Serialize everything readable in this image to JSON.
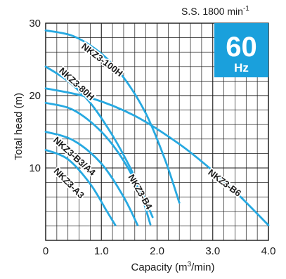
{
  "chart_data": {
    "type": "line",
    "title": "",
    "xlabel": "Capacity (m",
    "xlabel_sup": "3",
    "xlabel_tail": "/min)",
    "ylabel": "Total head (m)",
    "xlim": [
      0,
      4.0
    ],
    "ylim": [
      0,
      30
    ],
    "x_ticks": [
      0,
      1.0,
      2.0,
      3.0,
      4.0
    ],
    "x_tick_labels": [
      "0",
      "1.0",
      "2.0",
      "3.0",
      "4.0"
    ],
    "y_ticks": [
      10,
      20,
      30
    ],
    "y_tick_labels": [
      "10",
      "20",
      "30"
    ],
    "grid": true,
    "speed_label": "S.S. 1800 min",
    "speed_sup": "-1",
    "badge": {
      "value": "60",
      "unit": "Hz",
      "color": "#1aa0dc"
    },
    "curve_color": "#27a9e1",
    "series": [
      {
        "name": "NKZ3-100H",
        "x": [
          0,
          0.5,
          1.0,
          1.4,
          1.8,
          2.15,
          2.4
        ],
        "y": [
          29,
          28.2,
          25.8,
          22.5,
          17.5,
          11,
          5.2
        ]
      },
      {
        "name": "NKZ3-80H",
        "x": [
          0,
          0.4,
          0.8,
          1.2,
          1.5,
          1.75,
          1.92
        ],
        "y": [
          24,
          22,
          19,
          14.5,
          10.3,
          6.2,
          3.2
        ]
      },
      {
        "name": "NKZ3-B3/A4",
        "x": [
          0,
          0.5,
          1.0,
          1.4,
          1.65
        ],
        "y": [
          15,
          13.8,
          10.6,
          6,
          2.1
        ]
      },
      {
        "name": "NKZ3-A3",
        "x": [
          0,
          0.4,
          0.8,
          1.1,
          1.25
        ],
        "y": [
          12.5,
          11.2,
          7.8,
          4,
          2.1
        ]
      },
      {
        "name": "NKZ3-B4",
        "x": [
          0,
          0.5,
          1.0,
          1.4,
          1.7,
          1.88
        ],
        "y": [
          19,
          18,
          15,
          11,
          6.5,
          2.2
        ]
      },
      {
        "name": "NKZ3-B6",
        "x": [
          0,
          0.8,
          1.6,
          2.4,
          3.0,
          3.5,
          4.0
        ],
        "y": [
          21,
          19.7,
          17.2,
          13.3,
          9.6,
          6.0,
          2.1
        ]
      }
    ]
  }
}
